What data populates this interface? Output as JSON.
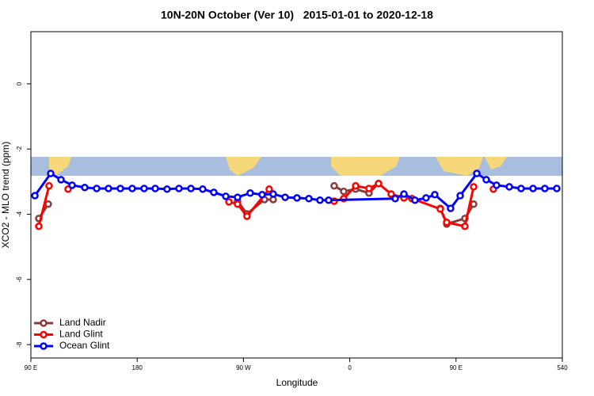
{
  "chart_data": {
    "type": "line",
    "title": "10N-20N October (Ver 10)   2015-01-01 to 2020-12-18",
    "x_label": "Longitude",
    "y_label": "XCO2 - MLO trend (ppm)",
    "xlim": [
      90,
      540
    ],
    "ylim": [
      -8.41,
      1.6
    ],
    "xticks": [
      {
        "value": 90,
        "label": "90 E"
      },
      180,
      {
        "value": 270,
        "label": "90 W"
      },
      {
        "value": 360,
        "label": "0"
      },
      {
        "value": 450,
        "label": "90 E"
      },
      540
    ],
    "yticks": [
      -8,
      -6,
      -4,
      -2,
      0
    ],
    "legend": "bottom-left",
    "series": [
      {
        "name": "Land Nadir",
        "color": "#8b3a3a",
        "x": [
          96.7,
          104.7,
          null,
          265,
          273,
          287.8,
          295.2,
          null,
          346.8,
          354.9,
          365,
          376.3,
          384.4,
          null,
          436.7,
          442.1,
          457.5,
          464.9
        ],
        "values": [
          -4.13,
          -3.69,
          null,
          -3.6,
          -3.99,
          -3.55,
          -3.55,
          null,
          -3.13,
          -3.3,
          -3.23,
          -3.35,
          -3.06,
          null,
          -3.82,
          -4.3,
          -4.13,
          -3.69
        ]
      },
      {
        "name": "Land Glint",
        "color": "#ff0000",
        "x": [
          96.7,
          105.4,
          null,
          121.5,
          null,
          257.7,
          265,
          273,
          291.8,
          null,
          346.8,
          354.9,
          365,
          376.3,
          384.4,
          395.1,
          405.9,
          412.6,
          436.7,
          442.1,
          457.5,
          464.9,
          null,
          481.6
        ],
        "values": [
          -4.37,
          -3.13,
          null,
          -3.23,
          null,
          -3.62,
          -3.69,
          -4.06,
          -3.23,
          null,
          -3.6,
          -3.52,
          -3.13,
          -3.21,
          -3.06,
          -3.38,
          -3.5,
          -3.52,
          -3.84,
          -4.25,
          -4.37,
          -3.16,
          null,
          -3.23
        ]
      },
      {
        "name": "Ocean Glint",
        "color": "#0000ff",
        "x": [
          93.4,
          106.8,
          115.5,
          124.9,
          135.6,
          145.7,
          155.7,
          165.8,
          175.8,
          185.9,
          195.3,
          205.3,
          215.4,
          225.5,
          235.5,
          244.9,
          255,
          265,
          275.7,
          285.8,
          295.2,
          305.3,
          315.3,
          325.4,
          334.8,
          342.1,
          398.5,
          405.9,
          415.2,
          424.6,
          432,
          445.4,
          453.5,
          467.6,
          475.6,
          484.3,
          495.1,
          505.1,
          515.2,
          525.2,
          535.3
        ],
        "values": [
          -3.43,
          -2.75,
          -2.94,
          -3.11,
          -3.18,
          -3.21,
          -3.21,
          -3.21,
          -3.21,
          -3.21,
          -3.21,
          -3.23,
          -3.21,
          -3.21,
          -3.23,
          -3.33,
          -3.45,
          -3.48,
          -3.35,
          -3.4,
          -3.38,
          -3.48,
          -3.5,
          -3.52,
          -3.57,
          -3.57,
          -3.52,
          -3.38,
          -3.57,
          -3.5,
          -3.4,
          -3.82,
          -3.43,
          -2.75,
          -2.94,
          -3.11,
          -3.16,
          -3.21,
          -3.21,
          -3.21,
          -3.21
        ]
      }
    ]
  }
}
